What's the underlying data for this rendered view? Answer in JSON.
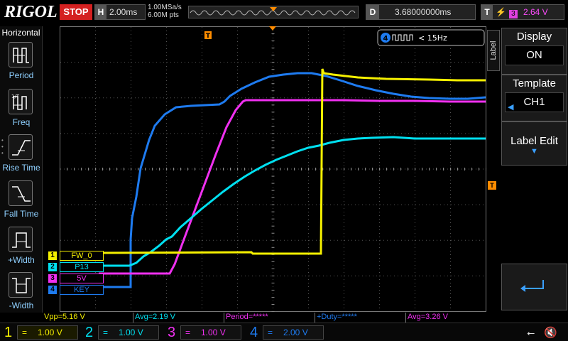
{
  "header": {
    "logo": "RIGOL",
    "run_state": "STOP",
    "timebase_label": "H",
    "timebase": "2.00ms",
    "sample_rate": "1.00MSa/s",
    "mem_depth": "6.00M pts",
    "delay_label": "D",
    "delay": "3.68000000ms",
    "trigger_label": "T",
    "trigger_source": "3",
    "trigger_level": "2.64 V"
  },
  "left_menu": {
    "title": "Horizontal",
    "items": [
      {
        "label": "Period",
        "icon": "period-icon"
      },
      {
        "label": "Freq",
        "icon": "freq-icon"
      },
      {
        "label": "Rise Time",
        "icon": "rise-time-icon"
      },
      {
        "label": "Fall Time",
        "icon": "fall-time-icon"
      },
      {
        "label": "+Width",
        "icon": "pos-width-icon"
      },
      {
        "label": "-Width",
        "icon": "neg-width-icon"
      }
    ]
  },
  "markers": {
    "trigger_marker": "T",
    "freq_counter_channel": "4",
    "freq_counter": "< 15Hz"
  },
  "channels": [
    {
      "num": "1",
      "label": "FW_0",
      "color": "#f5f000",
      "scale": "1.00 V",
      "coupling": "="
    },
    {
      "num": "2",
      "label": "P13",
      "color": "#00e0f0",
      "scale": "1.00 V",
      "coupling": "="
    },
    {
      "num": "3",
      "label": "5V",
      "color": "#f030f0",
      "scale": "1.00 V",
      "coupling": "="
    },
    {
      "num": "4",
      "label": "KEY",
      "color": "#1e7bf0",
      "scale": "2.00 V",
      "coupling": "="
    }
  ],
  "right_menu": {
    "tab": "Label",
    "display_title": "Display",
    "display_value": "ON",
    "template_title": "Template",
    "template_value": "CH1",
    "label_edit": "Label Edit"
  },
  "measurements": [
    {
      "text": "Vpp=5.16 V",
      "color": "#f5f000"
    },
    {
      "text": "Avg=2.19 V",
      "color": "#00e0f0"
    },
    {
      "text": "Period=*****",
      "color": "#f030f0"
    },
    {
      "text": "+Duty=*****",
      "color": "#1e7bf0"
    },
    {
      "text": "Avg=3.26 V",
      "color": "#f030f0"
    }
  ]
}
